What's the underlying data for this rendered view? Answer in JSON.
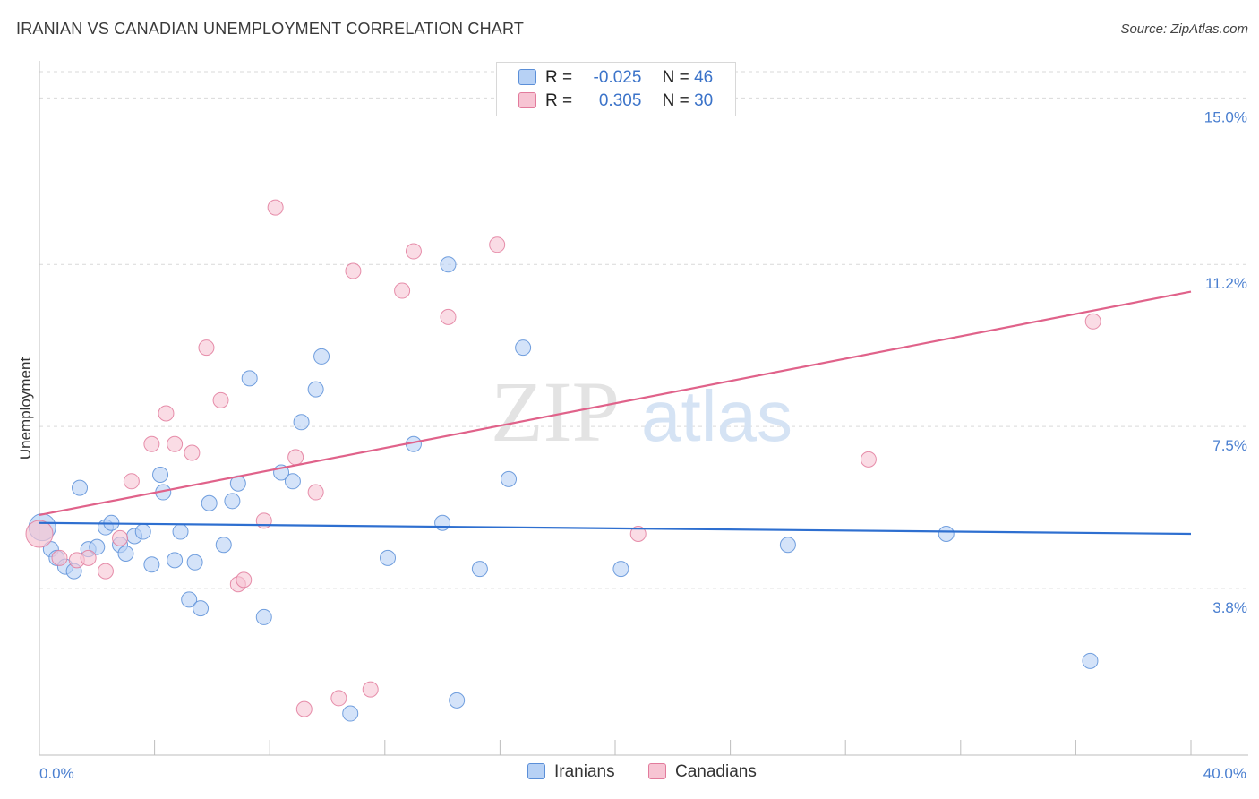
{
  "title": "IRANIAN VS CANADIAN UNEMPLOYMENT CORRELATION CHART",
  "source": "Source: ZipAtlas.com",
  "watermark": {
    "zip": "ZIP",
    "atlas": "atlas"
  },
  "legend": {
    "rows": [
      {
        "r_label": "R =",
        "r_value": "-0.025",
        "n_label": "N =",
        "n_value": "46"
      },
      {
        "r_label": "R =",
        "r_value": "0.305",
        "n_label": "N =",
        "n_value": "30"
      }
    ]
  },
  "bottom_legend": {
    "iranians": "Iranians",
    "canadians": "Canadians"
  },
  "colors": {
    "iranians_fill": "#b7d1f5",
    "iranians_stroke": "#5b8fd8",
    "iranians_line": "#2e6fd0",
    "canadians_fill": "#f7c4d3",
    "canadians_stroke": "#e27b9c",
    "canadians_line": "#e0628a",
    "tick_text": "#4a7fd0",
    "grid": "#d9d9d9"
  },
  "chart_data": {
    "type": "scatter",
    "title": "IRANIAN VS CANADIAN UNEMPLOYMENT CORRELATION CHART",
    "xlabel": "",
    "ylabel": "Unemployment",
    "xlim": [
      0,
      40
    ],
    "ylim": [
      0,
      15.6
    ],
    "x_tick_labels": [
      "0.0%",
      "40.0%"
    ],
    "y_ticks": [
      3.8,
      7.5,
      11.2,
      15.0
    ],
    "y_tick_labels": [
      "3.8%",
      "7.5%",
      "11.2%",
      "15.0%"
    ],
    "grid": true,
    "series": [
      {
        "name": "Iranians",
        "r": -0.025,
        "n": 46,
        "trend": {
          "x": [
            0,
            40
          ],
          "y": [
            5.3,
            5.05
          ]
        },
        "points": [
          [
            0.1,
            5.2
          ],
          [
            0.4,
            4.7
          ],
          [
            0.6,
            4.5
          ],
          [
            0.9,
            4.3
          ],
          [
            1.2,
            4.2
          ],
          [
            1.4,
            6.1
          ],
          [
            1.7,
            4.7
          ],
          [
            2.0,
            4.75
          ],
          [
            2.3,
            5.2
          ],
          [
            2.5,
            5.3
          ],
          [
            2.8,
            4.8
          ],
          [
            3.0,
            4.6
          ],
          [
            3.3,
            5.0
          ],
          [
            3.6,
            5.1
          ],
          [
            3.9,
            4.35
          ],
          [
            4.2,
            6.4
          ],
          [
            4.3,
            6.0
          ],
          [
            4.7,
            4.45
          ],
          [
            4.9,
            5.1
          ],
          [
            5.2,
            3.55
          ],
          [
            5.4,
            4.4
          ],
          [
            5.6,
            3.35
          ],
          [
            5.9,
            5.75
          ],
          [
            6.4,
            4.8
          ],
          [
            6.7,
            5.8
          ],
          [
            6.9,
            6.2
          ],
          [
            7.3,
            8.6
          ],
          [
            7.8,
            3.15
          ],
          [
            8.4,
            6.45
          ],
          [
            8.8,
            6.25
          ],
          [
            9.1,
            7.6
          ],
          [
            9.6,
            8.35
          ],
          [
            9.8,
            9.1
          ],
          [
            10.8,
            0.95
          ],
          [
            12.1,
            4.5
          ],
          [
            13.0,
            7.1
          ],
          [
            14.0,
            5.3
          ],
          [
            14.2,
            11.2
          ],
          [
            14.5,
            1.25
          ],
          [
            15.3,
            4.25
          ],
          [
            16.3,
            6.3
          ],
          [
            16.8,
            9.3
          ],
          [
            20.2,
            4.25
          ],
          [
            26.0,
            4.8
          ],
          [
            31.5,
            5.05
          ],
          [
            36.5,
            2.15
          ]
        ]
      },
      {
        "name": "Canadians",
        "r": 0.305,
        "n": 30,
        "trend": {
          "x": [
            0,
            40
          ],
          "y": [
            5.48,
            10.58
          ]
        },
        "points": [
          [
            0.0,
            5.05
          ],
          [
            0.7,
            4.5
          ],
          [
            1.3,
            4.45
          ],
          [
            1.7,
            4.5
          ],
          [
            2.3,
            4.2
          ],
          [
            2.8,
            4.95
          ],
          [
            3.2,
            6.25
          ],
          [
            3.9,
            7.1
          ],
          [
            4.4,
            7.8
          ],
          [
            4.7,
            7.1
          ],
          [
            5.3,
            6.9
          ],
          [
            5.8,
            9.3
          ],
          [
            6.3,
            8.1
          ],
          [
            6.9,
            3.9
          ],
          [
            7.1,
            4.0
          ],
          [
            7.8,
            5.35
          ],
          [
            8.2,
            12.5
          ],
          [
            8.9,
            6.8
          ],
          [
            9.2,
            1.05
          ],
          [
            9.6,
            6.0
          ],
          [
            10.4,
            1.3
          ],
          [
            10.9,
            11.05
          ],
          [
            11.5,
            1.5
          ],
          [
            12.6,
            10.6
          ],
          [
            13.0,
            11.5
          ],
          [
            14.2,
            10.0
          ],
          [
            15.9,
            11.65
          ],
          [
            20.8,
            5.05
          ],
          [
            28.8,
            6.75
          ],
          [
            36.6,
            9.9
          ]
        ]
      }
    ]
  }
}
